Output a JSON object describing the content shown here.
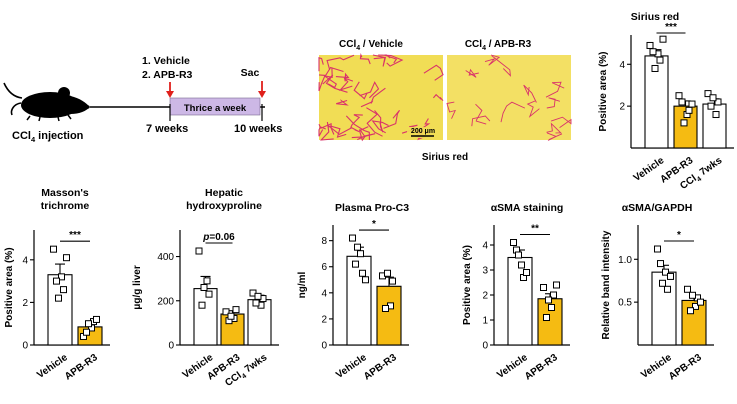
{
  "colors": {
    "vehicle_fill": "#ffffff",
    "treat_fill": "#f5bb12",
    "timeline_box": "#cdb8e6",
    "arrow": "#e0201b",
    "tissue": "#f1dd55",
    "stain": "#d9336a"
  },
  "schematic": {
    "injection_label_pre": "CCl",
    "injection_label_sub": "4",
    "injection_label_post": " injection",
    "treatment_1": "1. Vehicle",
    "treatment_2": "2. APB-R3",
    "box_label": "Thrice a week",
    "sac_label": "Sac",
    "start_label": "7 weeks",
    "end_label": "10 weeks"
  },
  "micrographs": {
    "left_title_pre": "CCl",
    "left_title_sub": "4",
    "left_title_post": " / Vehicle",
    "right_title_pre": "CCl",
    "right_title_sub": "4",
    "right_title_post": " / APB-R3",
    "scale_bar": "200 μm",
    "caption": "Sirius red"
  },
  "chart_data": [
    {
      "id": "sirius",
      "type": "bar",
      "title": "Sirius red",
      "title_lines": [
        "Sirius red"
      ],
      "ylabel": "Positive area (%)",
      "ylabel_lines": [
        "Positive area (%)"
      ],
      "yticks": [
        2,
        4
      ],
      "ylim": [
        0,
        5.4
      ],
      "categories": [
        "Vehicle",
        "APB-R3",
        "CCl4 7wks"
      ],
      "category_labels": [
        [
          "Vehicle",
          "",
          ""
        ],
        [
          "APB-R3",
          "",
          ""
        ],
        [
          "CCl",
          "4",
          " 7wks"
        ]
      ],
      "values": [
        4.4,
        2.0,
        2.1
      ],
      "errors": [
        0.3,
        0.25,
        0.25
      ],
      "points": [
        [
          4.9,
          4.5,
          4.2,
          4.6,
          3.8,
          5.2
        ],
        [
          2.5,
          1.6,
          1.8,
          2.2,
          1.2,
          2.1
        ],
        [
          2.6,
          1.6,
          2.2,
          2.0,
          2.4
        ]
      ],
      "fill_roles": [
        "vehicle",
        "treat",
        "vehicle"
      ],
      "significance": {
        "from": 0,
        "to": 1,
        "label": "***"
      }
    },
    {
      "id": "masson",
      "type": "bar",
      "title": "Masson's trichrome",
      "title_lines": [
        "Masson's",
        "trichrome"
      ],
      "ylabel": "Positive area (%)",
      "ylabel_lines": [
        "Positive area (%)"
      ],
      "yticks": [
        0,
        2,
        4
      ],
      "ylim": [
        0,
        5.4
      ],
      "categories": [
        "Vehicle",
        "APB-R3"
      ],
      "category_labels": [
        [
          "Vehicle",
          "",
          ""
        ],
        [
          "APB-R3",
          "",
          ""
        ]
      ],
      "values": [
        3.3,
        0.85
      ],
      "errors": [
        0.5,
        0.15
      ],
      "points": [
        [
          4.5,
          3.2,
          2.6,
          3.0,
          2.2,
          4.1
        ],
        [
          0.4,
          0.8,
          1.1,
          0.6,
          1.0,
          1.2
        ]
      ],
      "fill_roles": [
        "vehicle",
        "treat"
      ],
      "significance": {
        "from": 0,
        "to": 1,
        "label": "***"
      }
    },
    {
      "id": "hydroxyproline",
      "type": "bar",
      "title": "Hepatic hydroxyproline",
      "title_lines": [
        "Hepatic",
        "hydroxyproline"
      ],
      "ylabel": "μg/g liver",
      "ylabel_lines": [
        "μg/g liver"
      ],
      "yticks": [
        0,
        200,
        400
      ],
      "ylim": [
        0,
        520
      ],
      "categories": [
        "Vehicle",
        "APB-R3",
        "CCl4 7wks"
      ],
      "category_labels": [
        [
          "Vehicle",
          "",
          ""
        ],
        [
          "APB-R3",
          "",
          ""
        ],
        [
          "CCl",
          "4",
          " 7wks"
        ]
      ],
      "values": [
        255,
        140,
        205
      ],
      "errors": [
        55,
        15,
        20
      ],
      "points": [
        [
          425,
          290,
          230,
          180,
          260
        ],
        [
          150,
          120,
          160,
          110,
          130
        ],
        [
          235,
          180,
          210,
          190,
          220
        ]
      ],
      "fill_roles": [
        "vehicle",
        "treat",
        "vehicle"
      ],
      "significance": {
        "from": 0,
        "to": 1,
        "label_italic": "p",
        "label": "=0.06"
      }
    },
    {
      "id": "proc3",
      "type": "bar",
      "title": "Plasma Pro-C3",
      "title_lines": [
        "Plasma Pro-C3"
      ],
      "ylabel": "ng/ml",
      "ylabel_lines": [
        "ng/ml"
      ],
      "yticks": [
        0,
        2,
        4,
        6,
        8
      ],
      "ylim": [
        0,
        9.2
      ],
      "categories": [
        "Vehicle",
        "APB-R3"
      ],
      "category_labels": [
        [
          "Vehicle",
          "",
          ""
        ],
        [
          "APB-R3",
          "",
          ""
        ]
      ],
      "values": [
        6.8,
        4.5
      ],
      "errors": [
        0.7,
        0.7
      ],
      "points": [
        [
          8.2,
          7.0,
          5.5,
          6.2,
          7.5,
          5.0
        ],
        [
          5.3,
          3.0,
          4.9,
          2.8,
          5.5
        ]
      ],
      "fill_roles": [
        "vehicle",
        "treat"
      ],
      "significance": {
        "from": 0,
        "to": 1,
        "label": "*"
      }
    },
    {
      "id": "asma",
      "type": "bar",
      "title": "αSMA staining",
      "title_lines": [
        "αSMA staining"
      ],
      "ylabel": "Positive area (%)",
      "ylabel_lines": [
        "Positive area (%)"
      ],
      "yticks": [
        0,
        1,
        2,
        3,
        4
      ],
      "ylim": [
        0,
        4.8
      ],
      "categories": [
        "Vehicle",
        "APB-R3"
      ],
      "category_labels": [
        [
          "Vehicle",
          "",
          ""
        ],
        [
          "APB-R3",
          "",
          ""
        ]
      ],
      "values": [
        3.5,
        1.85
      ],
      "errors": [
        0.3,
        0.2
      ],
      "points": [
        [
          4.1,
          3.2,
          2.7,
          3.8,
          3.6,
          2.9
        ],
        [
          2.3,
          1.5,
          2.0,
          1.1,
          1.8,
          2.4
        ]
      ],
      "fill_roles": [
        "vehicle",
        "treat"
      ],
      "significance": {
        "from": 0,
        "to": 1,
        "label": "**"
      }
    },
    {
      "id": "asma_gapdh",
      "type": "bar",
      "title": "αSMA/GAPDH",
      "title_lines": [
        "αSMA/GAPDH"
      ],
      "ylabel": "Relative band intensity",
      "ylabel_lines": [
        "Relative band intensity"
      ],
      "yticks": [
        0.5,
        1.0
      ],
      "ylim": [
        0,
        1.4
      ],
      "categories": [
        "Vehicle",
        "APB-R3"
      ],
      "category_labels": [
        [
          "Vehicle",
          "",
          ""
        ],
        [
          "APB-R3",
          "",
          ""
        ]
      ],
      "values": [
        0.85,
        0.52
      ],
      "errors": [
        0.08,
        0.05
      ],
      "points": [
        [
          1.12,
          0.85,
          0.65,
          0.95,
          0.72,
          0.8
        ],
        [
          0.65,
          0.45,
          0.55,
          0.4,
          0.58,
          0.5
        ]
      ],
      "fill_roles": [
        "vehicle",
        "treat"
      ],
      "significance": {
        "from": 0,
        "to": 1,
        "label": "*"
      }
    }
  ]
}
